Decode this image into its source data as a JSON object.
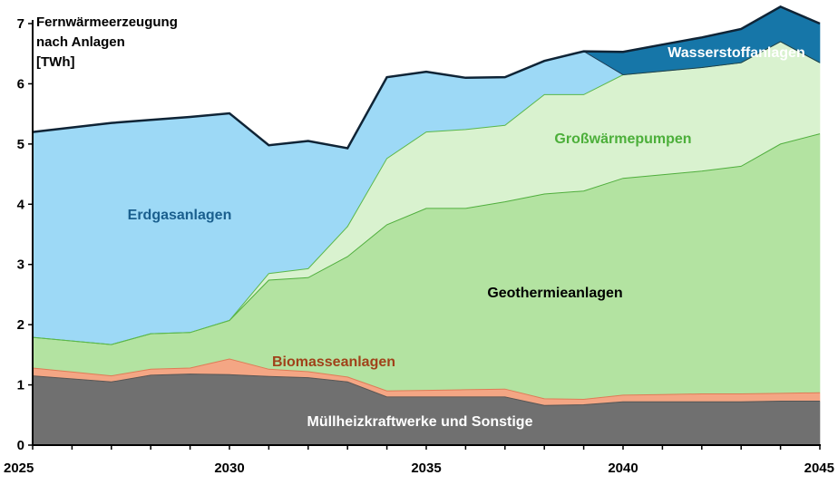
{
  "chart_data": {
    "type": "area",
    "stacked": true,
    "title": [
      "Fernwärmeerzeugung",
      "nach Anlagen",
      "[TWh]"
    ],
    "xlabel": "",
    "ylabel": "",
    "xlim": [
      2025,
      2045
    ],
    "ylim": [
      0,
      7
    ],
    "x_ticks": [
      2025,
      2030,
      2035,
      2040,
      2045
    ],
    "y_ticks": [
      0,
      1,
      2,
      3,
      4,
      5,
      6,
      7
    ],
    "grid": false,
    "legend": "none (labels inside areas)",
    "series": [
      {
        "name": "Müllheizkraftwerke und Sonstige",
        "color": "#707070",
        "label_color": "#ffffff",
        "points": [
          [
            2025,
            1.15
          ],
          [
            2027,
            1.05
          ],
          [
            2028,
            1.16
          ],
          [
            2029,
            1.18
          ],
          [
            2030,
            1.17
          ],
          [
            2031,
            1.14
          ],
          [
            2032,
            1.12
          ],
          [
            2033,
            1.05
          ],
          [
            2034,
            0.8
          ],
          [
            2035,
            0.8
          ],
          [
            2036,
            0.8
          ],
          [
            2037,
            0.8
          ],
          [
            2038,
            0.66
          ],
          [
            2039,
            0.67
          ],
          [
            2040,
            0.72
          ],
          [
            2041,
            0.72
          ],
          [
            2042,
            0.72
          ],
          [
            2043,
            0.72
          ],
          [
            2044,
            0.73
          ],
          [
            2045,
            0.73
          ]
        ]
      },
      {
        "name": "Biomasseanlagen",
        "color": "#f4a684",
        "label_color": "#a0421a",
        "points": [
          [
            2025,
            0.13
          ],
          [
            2027,
            0.1
          ],
          [
            2028,
            0.1
          ],
          [
            2029,
            0.1
          ],
          [
            2030,
            0.26
          ],
          [
            2031,
            0.12
          ],
          [
            2032,
            0.1
          ],
          [
            2033,
            0.08
          ],
          [
            2034,
            0.1
          ],
          [
            2035,
            0.11
          ],
          [
            2036,
            0.12
          ],
          [
            2037,
            0.13
          ],
          [
            2038,
            0.11
          ],
          [
            2039,
            0.09
          ],
          [
            2040,
            0.11
          ],
          [
            2041,
            0.12
          ],
          [
            2042,
            0.13
          ],
          [
            2043,
            0.13
          ],
          [
            2044,
            0.13
          ],
          [
            2045,
            0.14
          ]
        ]
      },
      {
        "name": "Geothermieanlagen",
        "color": "#b3e3a1",
        "label_color": "#000000",
        "points": [
          [
            2025,
            0.51
          ],
          [
            2027,
            0.52
          ],
          [
            2028,
            0.59
          ],
          [
            2029,
            0.59
          ],
          [
            2030,
            0.64
          ],
          [
            2031,
            1.48
          ],
          [
            2032,
            1.56
          ],
          [
            2033,
            2.0
          ],
          [
            2034,
            2.76
          ],
          [
            2035,
            3.02
          ],
          [
            2036,
            3.01
          ],
          [
            2037,
            3.11
          ],
          [
            2038,
            3.4
          ],
          [
            2039,
            3.46
          ],
          [
            2040,
            3.6
          ],
          [
            2041,
            3.65
          ],
          [
            2042,
            3.7
          ],
          [
            2043,
            3.78
          ],
          [
            2044,
            4.14
          ],
          [
            2045,
            4.3
          ]
        ]
      },
      {
        "name": "Großwärmepumpen",
        "color": "#d9f2cf",
        "label_color": "#4caf3a",
        "points": [
          [
            2025,
            0
          ],
          [
            2027,
            0
          ],
          [
            2028,
            0
          ],
          [
            2029,
            0
          ],
          [
            2030,
            0
          ],
          [
            2031,
            0.11
          ],
          [
            2032,
            0.15
          ],
          [
            2033,
            0.5
          ],
          [
            2034,
            1.1
          ],
          [
            2035,
            1.27
          ],
          [
            2036,
            1.31
          ],
          [
            2037,
            1.27
          ],
          [
            2038,
            1.65
          ],
          [
            2039,
            1.6
          ],
          [
            2040,
            1.72
          ],
          [
            2041,
            1.72
          ],
          [
            2042,
            1.72
          ],
          [
            2043,
            1.72
          ],
          [
            2044,
            1.7
          ],
          [
            2045,
            1.18
          ]
        ]
      },
      {
        "name": "Erdgasanlagen",
        "color": "#9dd9f6",
        "label_color": "#1a5f8e",
        "points": [
          [
            2025,
            3.41
          ],
          [
            2027,
            3.68
          ],
          [
            2028,
            3.55
          ],
          [
            2029,
            3.58
          ],
          [
            2030,
            3.44
          ],
          [
            2031,
            2.13
          ],
          [
            2032,
            2.12
          ],
          [
            2033,
            1.3
          ],
          [
            2034,
            1.35
          ],
          [
            2035,
            1.0
          ],
          [
            2036,
            0.86
          ],
          [
            2037,
            0.8
          ],
          [
            2038,
            0.56
          ],
          [
            2039,
            0.72
          ],
          [
            2040,
            0
          ],
          [
            2041,
            0
          ],
          [
            2042,
            0
          ],
          [
            2043,
            0
          ],
          [
            2044,
            0
          ],
          [
            2045,
            0
          ]
        ]
      },
      {
        "name": "Wasserstoffanlagen",
        "color": "#1676a8",
        "label_color": "#ffffff",
        "points": [
          [
            2025,
            0
          ],
          [
            2027,
            0
          ],
          [
            2028,
            0
          ],
          [
            2029,
            0
          ],
          [
            2030,
            0
          ],
          [
            2031,
            0
          ],
          [
            2032,
            0
          ],
          [
            2033,
            0
          ],
          [
            2034,
            0
          ],
          [
            2035,
            0
          ],
          [
            2036,
            0
          ],
          [
            2037,
            0
          ],
          [
            2038,
            0
          ],
          [
            2039,
            0
          ],
          [
            2040,
            0.38
          ],
          [
            2041,
            0.44
          ],
          [
            2042,
            0.5
          ],
          [
            2043,
            0.56
          ],
          [
            2044,
            0.58
          ],
          [
            2045,
            0.65
          ]
        ]
      }
    ]
  }
}
